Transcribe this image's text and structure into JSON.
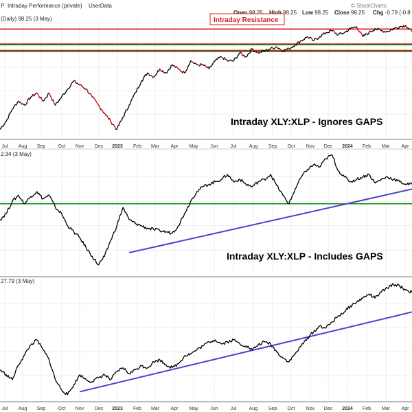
{
  "header": {
    "title": "Intraday Performance (private)",
    "symbol_prefix": "P",
    "user": "UserData",
    "watermark": "© StockCharts"
  },
  "ohlc": {
    "open_label": "Open",
    "open_value": "98.25",
    "high_label": "High",
    "high_value": "98.25",
    "low_label": "Low",
    "low_value": "98.25",
    "close_label": "Close",
    "close_value": "98.25",
    "chg_label": "Chg",
    "chg_value": "-0.79 (-0.8"
  },
  "colors": {
    "up": "#000000",
    "down": "#cc0000",
    "resistance": "#d42020",
    "support": "#0a8a0a",
    "trendline": "#4b3fd0",
    "grid": "#e3e3e3"
  },
  "chart_data": [
    {
      "type": "line",
      "panel": "top",
      "legend_text": "(Daily) 98.25 (3 May)",
      "annotation": "Intraday XLY:XLP - Ignores GAPS",
      "resistance_label": "Intraday Resistance",
      "x_labels": [
        "Jul",
        "Aug",
        "Sep",
        "Oct",
        "Nov",
        "Dec",
        "2023",
        "Feb",
        "Mar",
        "Apr",
        "May",
        "Jun",
        "Jul",
        "Aug",
        "Sep",
        "Oct",
        "Nov",
        "Dec",
        "2024",
        "Feb",
        "Mar",
        "Apr"
      ],
      "ylim": [
        72,
        101
      ],
      "horizontal_lines": [
        {
          "kind": "resistance",
          "y": 98.9
        },
        {
          "kind": "resistance",
          "y": 95.2
        },
        {
          "kind": "resistance",
          "y": 93.6
        },
        {
          "kind": "support",
          "y": 95.0
        },
        {
          "kind": "support",
          "y": 93.3
        }
      ],
      "series": [
        {
          "values": [
            74,
            76,
            79,
            81,
            80,
            82,
            83,
            81,
            83,
            80,
            82,
            84,
            86,
            85,
            84,
            82,
            80,
            78,
            76,
            74,
            77,
            80,
            83,
            86,
            88,
            87,
            89,
            88,
            90,
            89,
            88,
            91,
            90,
            90,
            89,
            91,
            92,
            91,
            91,
            93,
            92,
            94,
            93,
            93.5,
            94,
            94.5,
            93.5,
            94,
            95,
            96,
            97,
            96,
            97,
            98,
            98.5,
            97.5,
            98,
            99,
            99.5,
            97,
            98,
            99,
            98.5,
            98.3,
            99,
            99.5,
            99.8,
            98.25
          ]
        }
      ]
    },
    {
      "type": "line",
      "panel": "middle",
      "legend_text": "2.34 (3 May)",
      "annotation": "Intraday XLY:XLP - Includes GAPS",
      "ylim": [
        1.6,
        2.6
      ],
      "horizontal_lines": [
        {
          "kind": "support",
          "y": 2.18
        }
      ],
      "trendline": {
        "from": {
          "index": 21,
          "y": 1.78
        },
        "to": {
          "index": 67,
          "y": 2.3
        }
      },
      "series": [
        {
          "values": [
            2.05,
            2.1,
            2.2,
            2.25,
            2.18,
            2.24,
            2.28,
            2.22,
            2.25,
            2.15,
            2.1,
            2.0,
            1.95,
            1.9,
            1.82,
            1.75,
            1.68,
            1.75,
            1.88,
            2.0,
            2.15,
            2.05,
            2.02,
            2.0,
            1.98,
            1.97,
            1.96,
            1.95,
            1.94,
            2.0,
            2.1,
            2.2,
            2.28,
            2.32,
            2.34,
            2.36,
            2.38,
            2.42,
            2.36,
            2.38,
            2.34,
            2.32,
            2.36,
            2.38,
            2.42,
            2.33,
            2.25,
            2.18,
            2.3,
            2.4,
            2.46,
            2.5,
            2.48,
            2.55,
            2.58,
            2.45,
            2.4,
            2.36,
            2.38,
            2.4,
            2.42,
            2.35,
            2.38,
            2.4,
            2.38,
            2.36,
            2.34,
            2.34
          ]
        }
      ]
    },
    {
      "type": "line",
      "panel": "bottom",
      "legend_text": "27.79 (3 May)",
      "x_labels": [
        "Jul",
        "Aug",
        "Sep",
        "Oct",
        "Nov",
        "Dec",
        "2023",
        "Feb",
        "Mar",
        "Apr",
        "May",
        "Jun",
        "Jul",
        "Aug",
        "Sep",
        "Oct",
        "Nov",
        "Dec",
        "2024",
        "Feb",
        "Mar",
        "Apr"
      ],
      "ylim": [
        17,
        29
      ],
      "trendline": {
        "from": {
          "index": 13,
          "y": 17.8
        },
        "to": {
          "index": 67,
          "y": 25.8
        }
      },
      "series": [
        {
          "values": [
            20,
            19.5,
            19,
            20.5,
            21.5,
            22.5,
            23,
            22,
            21,
            19,
            18,
            17.5,
            18.5,
            19.5,
            19,
            18.8,
            19.2,
            19.5,
            19,
            19.8,
            20.2,
            19.6,
            20,
            20.4,
            20.2,
            20.8,
            21,
            20.5,
            20.2,
            20.6,
            21.4,
            21.6,
            22,
            22.4,
            22.8,
            23,
            22.6,
            22.8,
            23,
            22.6,
            22.4,
            22,
            22.5,
            22.8,
            22.6,
            21.8,
            21.2,
            20.8,
            21.6,
            22.4,
            23.2,
            23.8,
            24.4,
            24.2,
            24.8,
            25.4,
            25.8,
            26.4,
            26.8,
            27.2,
            27.6,
            27.2,
            27.8,
            28.2,
            28.6,
            28.4,
            28,
            27.79
          ]
        }
      ]
    }
  ]
}
